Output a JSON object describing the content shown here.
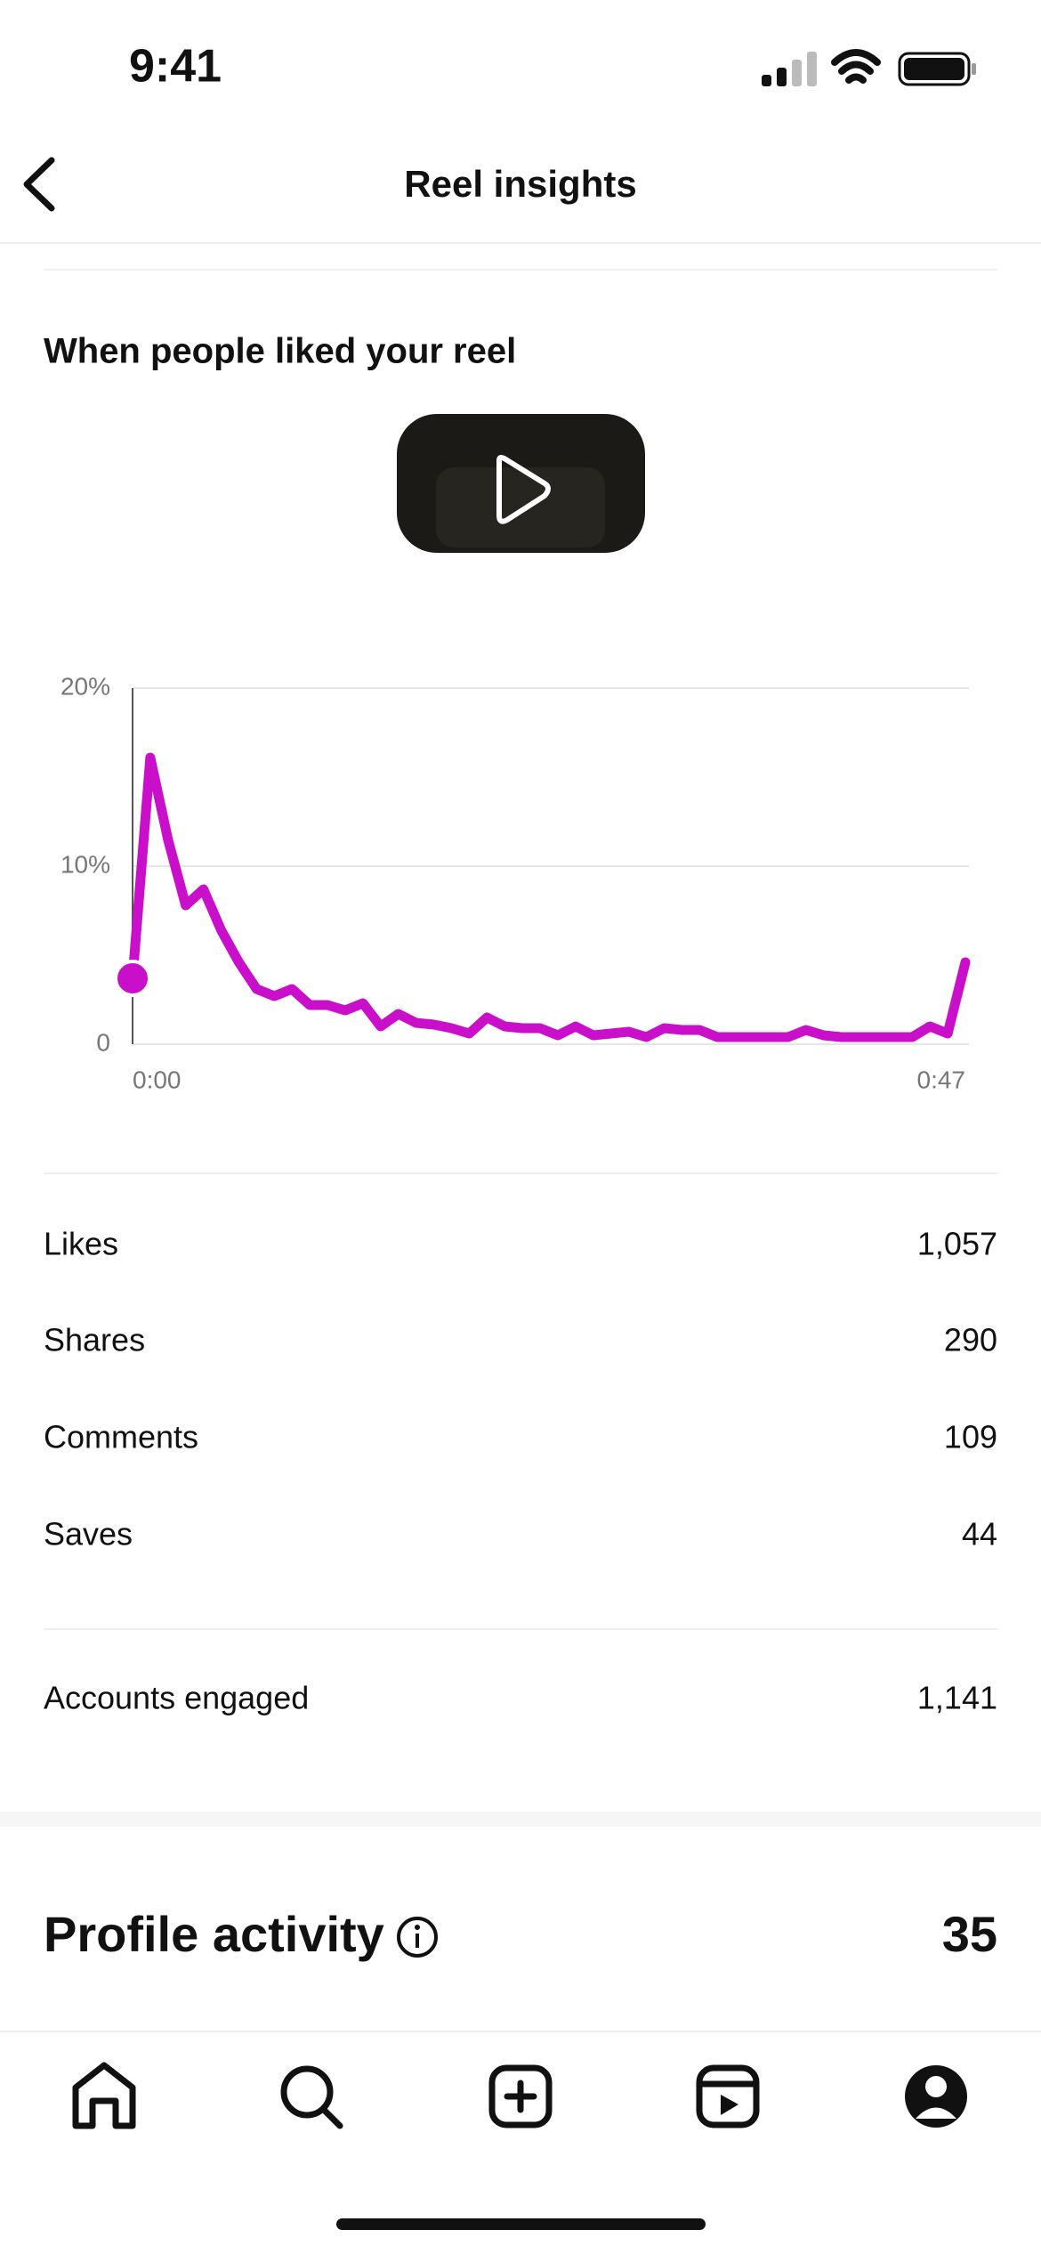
{
  "status_bar": {
    "time": "9:41"
  },
  "header": {
    "title": "Reel insights"
  },
  "chart_data": {
    "type": "line",
    "title": "When people liked your reel",
    "x": [
      0,
      1,
      2,
      3,
      4,
      5,
      6,
      7,
      8,
      9,
      10,
      11,
      12,
      13,
      14,
      15,
      16,
      17,
      18,
      19,
      20,
      21,
      22,
      23,
      24,
      25,
      26,
      27,
      28,
      29,
      30,
      31,
      32,
      33,
      34,
      35,
      36,
      37,
      38,
      39,
      40,
      41,
      42,
      43,
      44,
      45,
      46,
      47
    ],
    "series": [
      {
        "color": "#c90fc9",
        "values": [
          3.7,
          16.1,
          11.5,
          7.8,
          8.7,
          6.4,
          4.6,
          3.1,
          2.7,
          3.1,
          2.2,
          2.2,
          1.9,
          2.3,
          1.0,
          1.7,
          1.2,
          1.1,
          0.9,
          0.6,
          1.5,
          1.0,
          0.9,
          0.9,
          0.5,
          1.0,
          0.5,
          0.6,
          0.7,
          0.4,
          0.9,
          0.8,
          0.8,
          0.4,
          0.4,
          0.4,
          0.4,
          0.4,
          0.8,
          0.5,
          0.4,
          0.4,
          0.4,
          0.4,
          0.4,
          1.0,
          0.6,
          4.6
        ]
      }
    ],
    "xlim": [
      0,
      47
    ],
    "xticks": [
      {
        "value": 0,
        "label": "0:00"
      },
      {
        "value": 47,
        "label": "0:47"
      }
    ],
    "ylim": [
      0,
      20
    ],
    "yticks": [
      0,
      {
        "value": 10,
        "label": "10%"
      },
      {
        "value": 20,
        "label": "20%"
      }
    ],
    "grid": true
  },
  "stats": [
    {
      "label": "Likes",
      "value": "1,057"
    },
    {
      "label": "Shares",
      "value": "290"
    },
    {
      "label": "Comments",
      "value": "109"
    },
    {
      "label": "Saves",
      "value": "44"
    }
  ],
  "accounts_engaged": {
    "label": "Accounts engaged",
    "value": "1,141"
  },
  "profile_activity": {
    "label": "Profile activity",
    "value": "35"
  }
}
